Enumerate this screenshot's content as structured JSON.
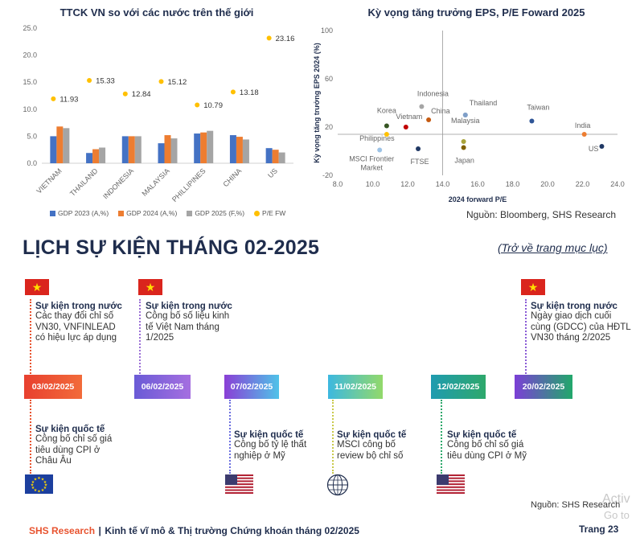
{
  "colors": {
    "gdp2023": "#4472c4",
    "gdp2024": "#ed7d31",
    "gdp2025": "#a5a5a5",
    "pefw": "#ffc000",
    "navy": "#1f2d4d",
    "red_accent": "#e8532f"
  },
  "left_chart": {
    "title": "TTCK VN so với các nước trên thế giới",
    "legend": [
      "GDP 2023 (A,%)",
      "GDP 2024 (A,%)",
      "GDP 2025 (F,%)",
      "P/E FW"
    ]
  },
  "right_chart": {
    "title": "Kỳ vọng tăng trưởng EPS, P/E Foward 2025",
    "xlabel": "2024 forward P/E",
    "ylabel": "Kỳ vọng tăng trưởng EPS 2024 (%)"
  },
  "chart_data": [
    {
      "type": "bar",
      "title": "TTCK VN so với các nước trên thế giới",
      "categories": [
        "VIETNAM",
        "THAILAND",
        "INDONESIA",
        "MALAYSIA",
        "PHILLIPINES",
        "CHINA",
        "US"
      ],
      "series": [
        {
          "name": "GDP 2023 (A,%)",
          "type": "bar",
          "values": [
            5.0,
            1.9,
            5.0,
            3.7,
            5.5,
            5.2,
            2.8
          ]
        },
        {
          "name": "GDP 2024 (A,%)",
          "type": "bar",
          "values": [
            6.8,
            2.6,
            5.0,
            5.2,
            5.7,
            4.9,
            2.5
          ]
        },
        {
          "name": "GDP 2025 (F,%)",
          "type": "bar",
          "values": [
            6.5,
            2.9,
            5.0,
            4.6,
            6.0,
            4.4,
            2.0
          ]
        },
        {
          "name": "P/E FW",
          "type": "scatter",
          "values": [
            11.93,
            15.33,
            12.84,
            15.12,
            10.79,
            13.18,
            23.16
          ],
          "labels": [
            "11.93",
            "15.33",
            "12.84",
            "15.12",
            "10.79",
            "13.18",
            "23.16"
          ]
        }
      ],
      "yticks": [
        "0.0",
        "5.0",
        "10.0",
        "15.0",
        "20.0",
        "25.0"
      ],
      "ylim": [
        0,
        25
      ],
      "legend_position": "bottom"
    },
    {
      "type": "scatter",
      "title": "Kỳ vọng tăng trưởng EPS, P/E Foward 2025",
      "xlabel": "2024 forward P/E",
      "ylabel": "Kỳ vọng tăng trưởng EPS 2024 (%)",
      "xlim": [
        8,
        24
      ],
      "ylim": [
        -20,
        100
      ],
      "xticks": [
        "8.0",
        "10.0",
        "12.0",
        "14.0",
        "16.0",
        "18.0",
        "20.0",
        "22.0",
        "24.0"
      ],
      "yticks": [
        "100",
        "60",
        "20",
        "-20"
      ],
      "reference_lines": {
        "x": 14,
        "y": 14
      },
      "points": [
        {
          "label": "Indonesia",
          "x": 12.8,
          "y": 37,
          "color": "#a5a5a5"
        },
        {
          "label": "China",
          "x": 13.2,
          "y": 26,
          "color": "#c55a11"
        },
        {
          "label": "Thailand",
          "x": 15.3,
          "y": 30,
          "color": "#7f9fc8"
        },
        {
          "label": "Malaysia",
          "x": 15.3,
          "y": 30,
          "color": "#7f9fc8"
        },
        {
          "label": "Korea",
          "x": 10.8,
          "y": 21,
          "color": "#375623"
        },
        {
          "label": "Vietnam",
          "x": 11.9,
          "y": 20,
          "color": "#c00000"
        },
        {
          "label": "Taiwan",
          "x": 19.1,
          "y": 25,
          "color": "#2f5597"
        },
        {
          "label": "India",
          "x": 22.1,
          "y": 14,
          "color": "#ed7d31"
        },
        {
          "label": "Philippines",
          "x": 10.8,
          "y": 14,
          "color": "#ffc000"
        },
        {
          "label": "US",
          "x": 23.1,
          "y": 4,
          "color": "#1f3864"
        },
        {
          "label": "MSCI Frontier Market",
          "x": 10.4,
          "y": 1,
          "color": "#9dc3e6"
        },
        {
          "label": "FTSE",
          "x": 12.6,
          "y": 2,
          "color": "#203864"
        },
        {
          "label": "",
          "x": 15.2,
          "y": 8,
          "color": "#a9a33a"
        },
        {
          "label": "Japan",
          "x": 15.2,
          "y": 3,
          "color": "#806000"
        }
      ]
    }
  ],
  "source_top": "Nguồn: Bloomberg, SHS Research",
  "section_title": "LỊCH SỰ KIỆN THÁNG 02-2025",
  "back_link": "(Trở về trang mục lục)",
  "events_domestic": [
    {
      "title": "Sự kiện trong nước",
      "text": [
        "Các thay đổi chỉ số",
        "VN30, VNFINLEAD",
        "có hiệu lực áp dụng"
      ]
    },
    {
      "title": "Sự kiện trong nước",
      "text": [
        "Công bố số liệu kinh",
        "tế Việt Nam tháng",
        "1/2025"
      ]
    },
    {
      "title": "Sự kiện trong nước",
      "text": [
        "Ngày giao dịch cuối",
        "cùng (GDCC) của HĐTL",
        "VN30 tháng 2/2025"
      ]
    }
  ],
  "dates": [
    "03/02/2025",
    "06/02/2025",
    "07/02/2025",
    "11/02/2025",
    "12/02/2025",
    "20/02/2025"
  ],
  "events_international": [
    {
      "title": "Sự kiện quốc tế",
      "text": [
        "Công bố chỉ số giá",
        "tiêu dùng CPI ở",
        "Châu Âu"
      ]
    },
    {
      "title": "Sự kiện quốc tế",
      "text": [
        "Công bố tỷ lệ thất",
        "nghiệp ở Mỹ"
      ]
    },
    {
      "title": "Sự kiện quốc tế",
      "text": [
        "MSCI công bố",
        "review bộ chỉ số"
      ]
    },
    {
      "title": "Sự kiện quốc tế",
      "text": [
        "Công bố chỉ số giá",
        "tiêu dùng CPI ở Mỹ"
      ]
    }
  ],
  "flag_star": "★",
  "source_bottom": "Nguồn: SHS Research",
  "footer": {
    "brand": "SHS Research",
    "separator": "|",
    "title": "Kinh tế vĩ mô & Thị trường Chứng khoán tháng 02/2025",
    "page": "Trang 23"
  },
  "watermark": [
    "Activ",
    "Go to"
  ]
}
